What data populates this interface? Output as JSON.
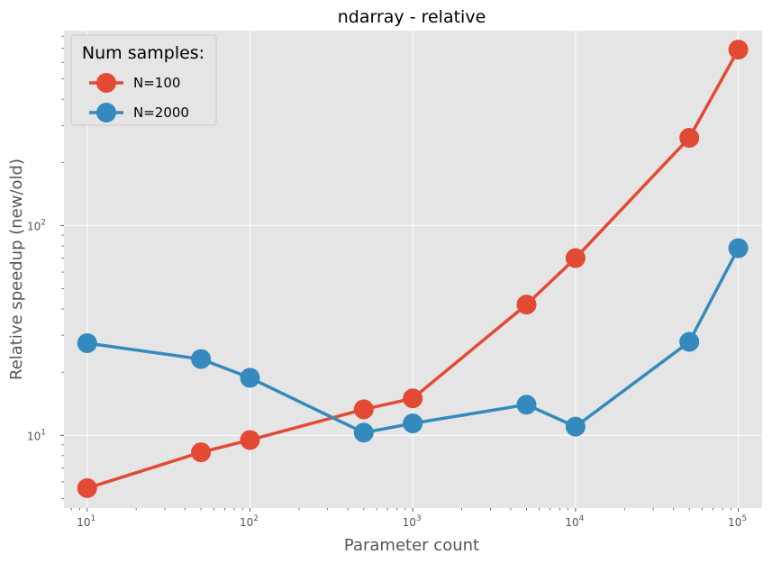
{
  "chart_data": {
    "type": "line",
    "title": "ndarray - relative",
    "xlabel": "Parameter count",
    "ylabel": "Relative speedup (new/old)",
    "xscale": "log",
    "yscale": "log",
    "xlim": [
      7.2,
      140000
    ],
    "ylim": [
      4.5,
      850
    ],
    "x": [
      10,
      50,
      100,
      500,
      1000,
      5000,
      10000,
      50000,
      100000
    ],
    "series": [
      {
        "name": "N=100",
        "color": "#E24A33",
        "values": [
          5.6,
          8.3,
          9.5,
          13.3,
          15.0,
          42,
          70,
          262,
          690
        ]
      },
      {
        "name": "N=2000",
        "color": "#348ABD",
        "values": [
          27.5,
          23.1,
          18.8,
          10.3,
          11.4,
          14.0,
          11.0,
          27.9,
          78
        ]
      }
    ],
    "x_ticks": [
      {
        "base": "10",
        "exp": "1",
        "value": 10
      },
      {
        "base": "10",
        "exp": "2",
        "value": 100
      },
      {
        "base": "10",
        "exp": "3",
        "value": 1000
      },
      {
        "base": "10",
        "exp": "4",
        "value": 10000
      },
      {
        "base": "10",
        "exp": "5",
        "value": 100000
      }
    ],
    "y_ticks": [
      {
        "base": "10",
        "exp": "1",
        "value": 10
      },
      {
        "base": "10",
        "exp": "2",
        "value": 100
      }
    ],
    "legend": {
      "title": "Num samples:",
      "position": "top-left"
    },
    "grid": true,
    "style": {
      "background": "#E5E5E5",
      "grid_color": "#FFFFFF"
    }
  }
}
